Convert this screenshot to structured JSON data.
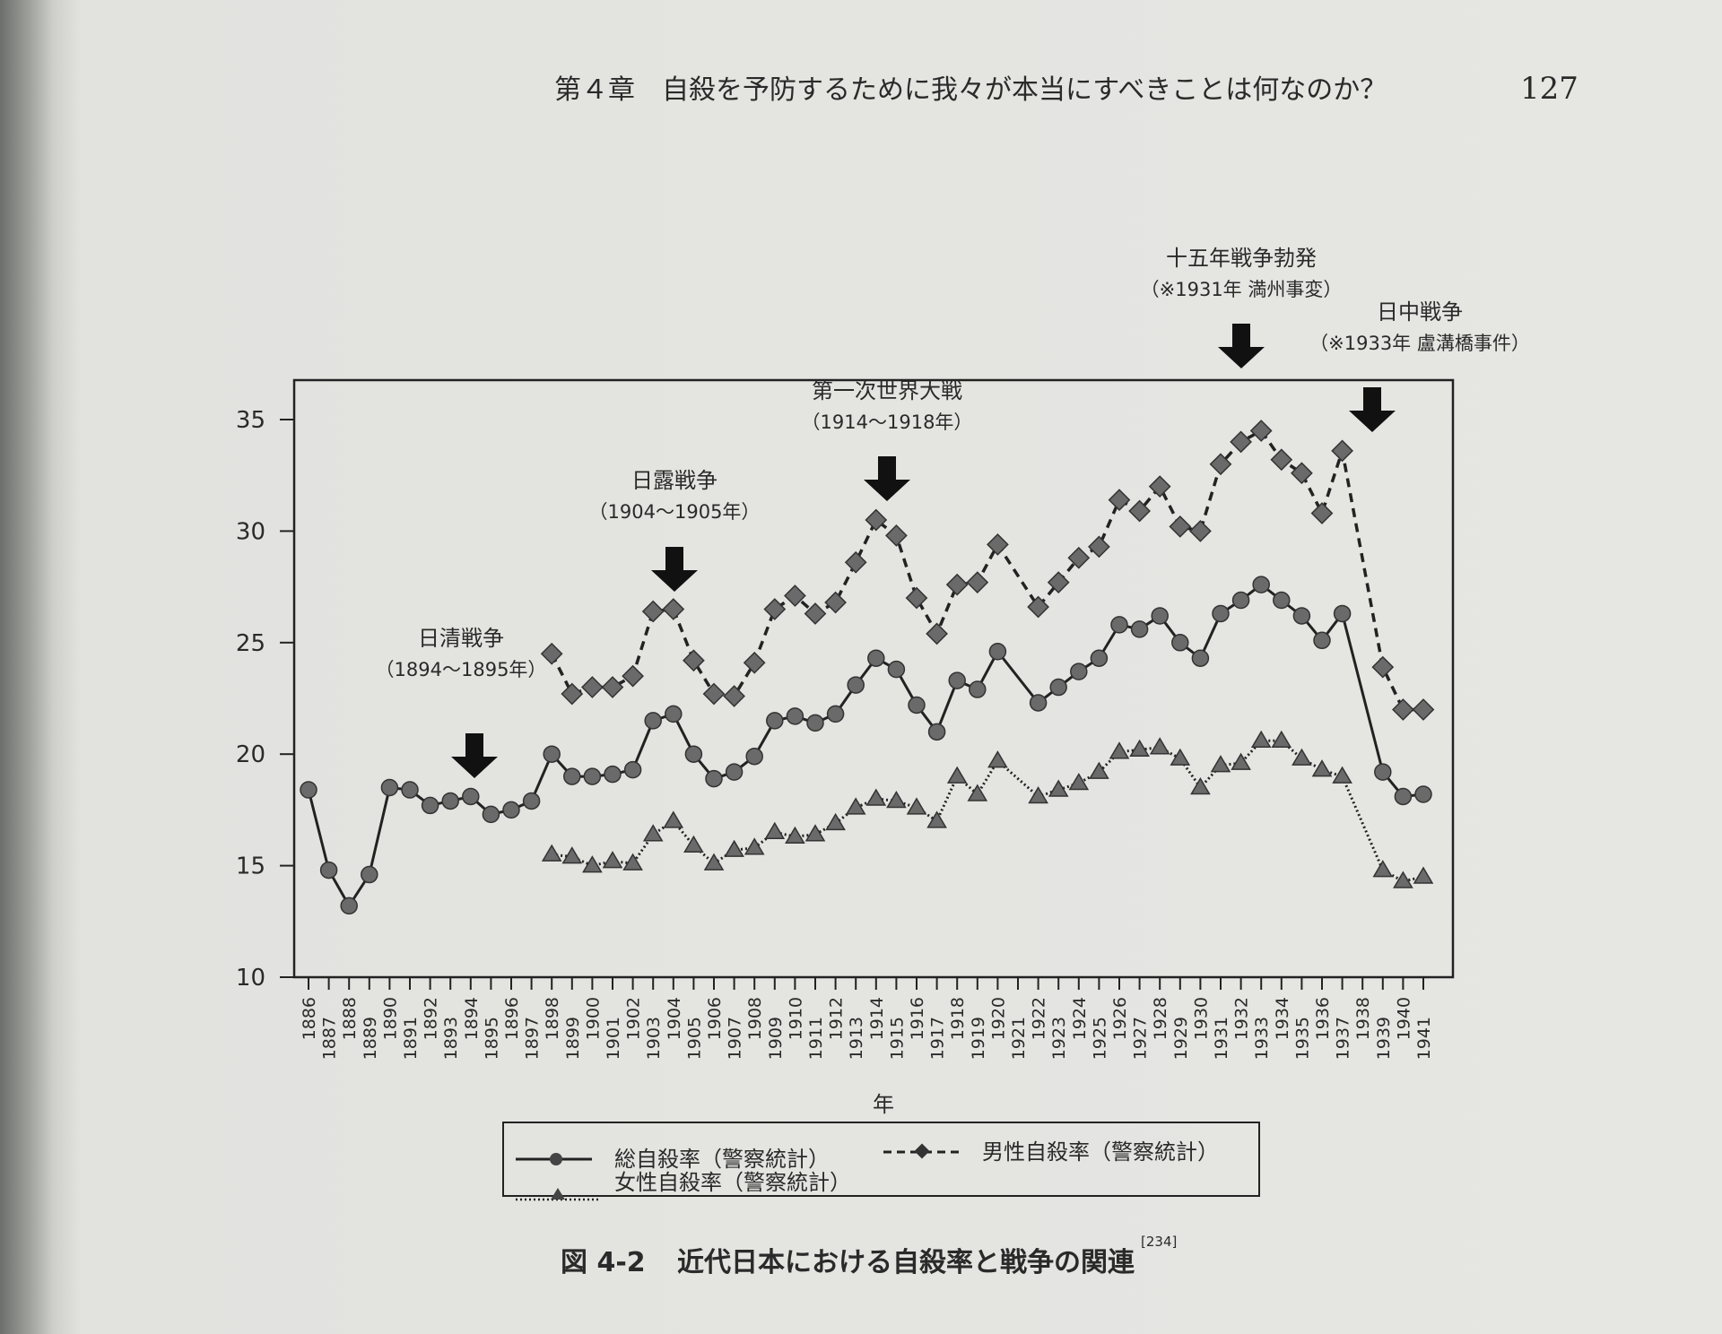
{
  "header": {
    "chapter_title": "第４章　自殺を予防するために我々が本当にすべきことは何なのか？",
    "page_number": "127"
  },
  "caption": {
    "label": "図 4-2",
    "text": "近代日本における自殺率と戦争の関連",
    "reference": "[234]"
  },
  "chart_data": {
    "type": "line",
    "title": "近代日本における自殺率と戦争の関連",
    "xlabel": "年",
    "ylabel": "",
    "ylim": [
      10,
      35
    ],
    "yticks": [
      "10",
      "15",
      "20",
      "25",
      "30",
      "35"
    ],
    "x": [
      1886,
      1887,
      1888,
      1889,
      1890,
      1891,
      1892,
      1893,
      1894,
      1895,
      1896,
      1897,
      1898,
      1899,
      1900,
      1901,
      1902,
      1903,
      1904,
      1905,
      1906,
      1907,
      1908,
      1909,
      1910,
      1911,
      1912,
      1913,
      1914,
      1915,
      1916,
      1917,
      1918,
      1919,
      1920,
      1921,
      1922,
      1923,
      1924,
      1925,
      1926,
      1927,
      1928,
      1929,
      1930,
      1931,
      1932,
      1933,
      1934,
      1935,
      1936,
      1937,
      1938,
      1939,
      1940,
      1941
    ],
    "series": [
      {
        "name": "総自殺率（警察統計）",
        "style": "solid-circle",
        "values": [
          18.4,
          14.8,
          13.2,
          14.6,
          18.5,
          18.4,
          17.7,
          17.9,
          18.1,
          17.3,
          17.5,
          17.9,
          20.0,
          19.0,
          19.0,
          19.1,
          19.3,
          21.5,
          21.8,
          20.0,
          18.9,
          19.2,
          19.9,
          21.5,
          21.7,
          21.4,
          21.8,
          23.1,
          24.3,
          23.8,
          22.2,
          21.0,
          23.3,
          22.9,
          24.6,
          null,
          22.3,
          23.0,
          23.7,
          24.3,
          25.8,
          25.6,
          26.2,
          25.0,
          24.3,
          26.3,
          26.9,
          27.6,
          26.9,
          26.2,
          25.1,
          26.3,
          null,
          19.2,
          18.1,
          18.2
        ]
      },
      {
        "name": "男性自殺率（警察統計）",
        "style": "dashed-diamond",
        "values": [
          null,
          null,
          null,
          null,
          null,
          null,
          null,
          null,
          null,
          null,
          null,
          null,
          24.5,
          22.7,
          23.0,
          23.0,
          23.5,
          26.4,
          26.5,
          24.2,
          22.7,
          22.6,
          24.1,
          26.5,
          27.1,
          26.3,
          26.8,
          28.6,
          30.5,
          29.8,
          27.0,
          25.4,
          27.6,
          27.7,
          29.4,
          null,
          26.6,
          27.7,
          28.8,
          29.3,
          31.4,
          30.9,
          32.0,
          30.2,
          30.0,
          33.0,
          34.0,
          34.5,
          33.2,
          32.6,
          30.8,
          33.6,
          null,
          23.9,
          22.0,
          22.0
        ]
      },
      {
        "name": "女性自殺率（警察統計）",
        "style": "dotted-triangle",
        "values": [
          null,
          null,
          null,
          null,
          null,
          null,
          null,
          null,
          null,
          null,
          null,
          null,
          15.5,
          15.4,
          15.0,
          15.2,
          15.1,
          16.4,
          17.0,
          15.9,
          15.1,
          15.7,
          15.8,
          16.5,
          16.3,
          16.4,
          16.9,
          17.6,
          18.0,
          17.9,
          17.6,
          17.0,
          19.0,
          18.2,
          19.7,
          null,
          18.1,
          18.4,
          18.7,
          19.2,
          20.1,
          20.2,
          20.3,
          19.8,
          18.5,
          19.5,
          19.6,
          20.6,
          20.6,
          19.8,
          19.3,
          19.0,
          null,
          14.8,
          14.3,
          14.5
        ]
      }
    ],
    "annotations": [
      {
        "title": "日清戦争",
        "sub": "（1894〜1895年）",
        "year": 1893
      },
      {
        "title": "日露戦争",
        "sub": "（1904〜1905年）",
        "year": 1903
      },
      {
        "title": "第一次世界大戦",
        "sub": "（1914〜1918年）",
        "year": 1914
      },
      {
        "title": "十五年戦争勃発",
        "sub": "（※1931年 満州事変）",
        "year": 1932
      },
      {
        "title": "日中戦争",
        "sub": "（※1933年 盧溝橋事件）",
        "year": 1938
      }
    ],
    "legend_position": "bottom",
    "grid": false
  },
  "colors": {
    "line": "#222222",
    "marker": "#6a6a6a",
    "paper": "#e4e4e1"
  }
}
